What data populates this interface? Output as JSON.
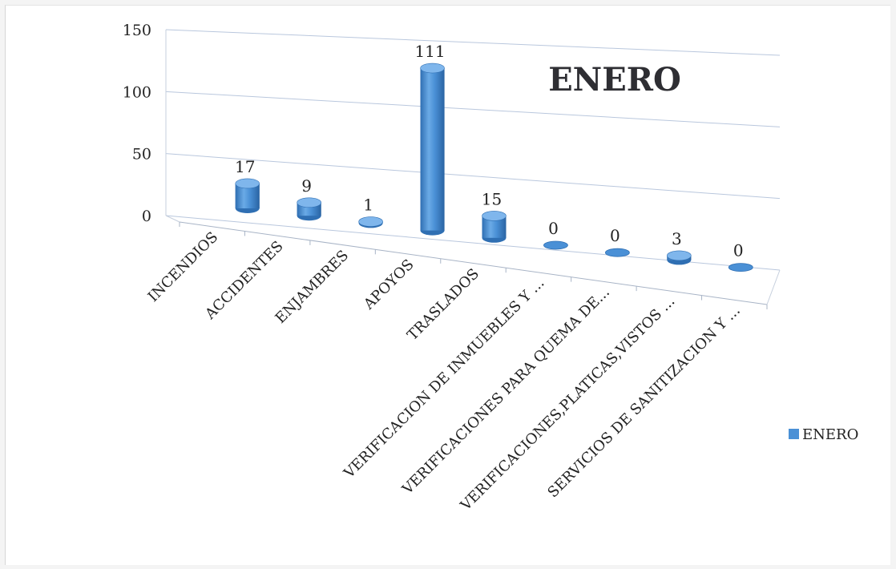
{
  "chart_data": {
    "type": "bar",
    "title": "ENERO",
    "categories": [
      "INCENDIOS",
      "ACCIDENTES",
      "ENJAMBRES",
      "APOYOS",
      "TRASLADOS",
      "VERIFICACION DE INMUEBLES Y ...",
      "VERIFICACIONES PARA QUEMA DE...",
      "VERIFICACIONES,PLATICAS,VISTOS ...",
      "SERVICIOS DE SANITIZACION Y ..."
    ],
    "series": [
      {
        "name": "ENERO",
        "values": [
          17,
          9,
          1,
          111,
          15,
          0,
          0,
          3,
          0
        ]
      }
    ],
    "ylim": [
      0,
      150
    ],
    "yticks": [
      0,
      50,
      100,
      150
    ],
    "grid": true,
    "legend": "right",
    "style": "3d-cylinder",
    "colors": {
      "bar": "#4a90d6",
      "bar_dark": "#2f6fb3",
      "bar_light": "#7fb6ec",
      "grid": "#b9c7dd"
    }
  }
}
